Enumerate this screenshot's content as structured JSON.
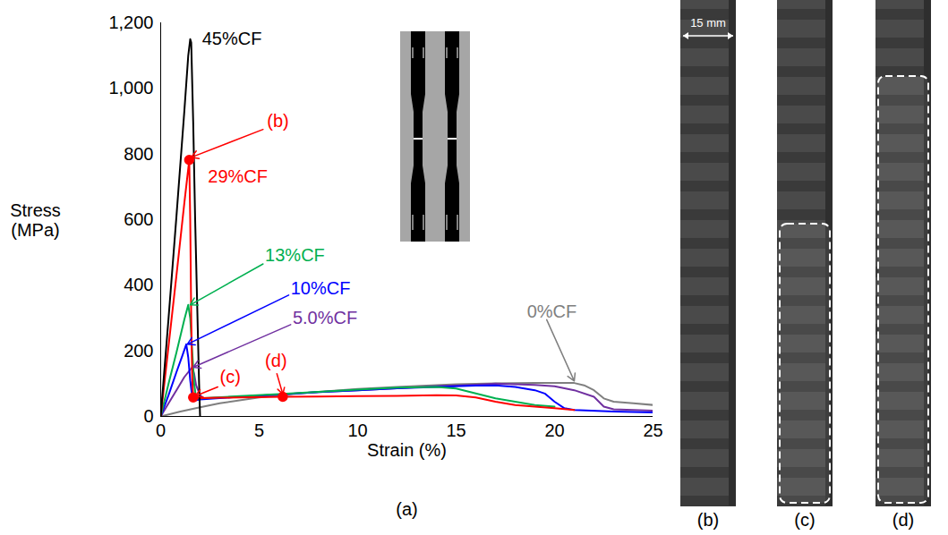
{
  "chart_data": {
    "type": "line",
    "x_label": "Strain (%)",
    "y_label": "Stress (MPa)",
    "panel_label": "(a)",
    "xlim": [
      0,
      25
    ],
    "ylim": [
      0,
      1200
    ],
    "xticks": [
      0,
      5,
      10,
      15,
      20,
      25
    ],
    "yticks": [
      0,
      200,
      400,
      600,
      800,
      1000,
      1200
    ],
    "series": [
      {
        "name": "45%CF",
        "color": "#000000",
        "x": [
          0,
          0.4,
          0.8,
          1.2,
          1.4,
          1.5,
          1.55,
          1.65,
          1.75,
          1.85,
          1.95,
          2.0
        ],
        "values": [
          0,
          300,
          610,
          930,
          1100,
          1150,
          1140,
          900,
          600,
          350,
          100,
          0
        ],
        "label": {
          "x": 2.1,
          "y": 1150
        }
      },
      {
        "name": "29%CF",
        "color": "#ff0000",
        "x": [
          0,
          0.4,
          0.8,
          1.2,
          1.45,
          1.5,
          1.55,
          1.6,
          1.65,
          2,
          3,
          4,
          6.2,
          8,
          10,
          12,
          14,
          15,
          16,
          17,
          18,
          19,
          20,
          21
        ],
        "values": [
          0,
          215,
          430,
          650,
          782,
          600,
          300,
          120,
          58,
          56,
          57,
          58,
          60,
          61,
          62,
          63,
          65,
          64,
          58,
          45,
          35,
          30,
          25,
          20
        ],
        "label": {
          "x": 2.4,
          "y": 730
        }
      },
      {
        "name": "13%CF",
        "color": "#00b050",
        "x": [
          0,
          0.4,
          0.8,
          1.2,
          1.4,
          1.5,
          1.6,
          1.7,
          1.8,
          2,
          4,
          6,
          8,
          10,
          12,
          14,
          15,
          16,
          17,
          18,
          19,
          20
        ],
        "values": [
          0,
          100,
          195,
          295,
          340,
          300,
          200,
          100,
          55,
          55,
          62,
          68,
          75,
          82,
          88,
          90,
          85,
          70,
          55,
          45,
          35,
          30
        ],
        "label": {
          "x": 5.3,
          "y": 490,
          "arrow": [
            [
              5.2,
              465
            ],
            [
              1.5,
              340
            ]
          ]
        }
      },
      {
        "name": "10%CF",
        "color": "#0000ff",
        "x": [
          0,
          0.4,
          0.8,
          1.1,
          1.3,
          1.4,
          1.5,
          1.6,
          1.8,
          2,
          4,
          6,
          8,
          10,
          12,
          14,
          16,
          17,
          18,
          19,
          19.5,
          20,
          20.5,
          21,
          23,
          25
        ],
        "values": [
          0,
          65,
          135,
          185,
          220,
          180,
          110,
          60,
          50,
          52,
          60,
          67,
          74,
          80,
          86,
          90,
          94,
          95,
          90,
          80,
          70,
          45,
          25,
          20,
          15,
          12
        ],
        "label": {
          "x": 6.6,
          "y": 390,
          "arrow": [
            [
              6.5,
              370
            ],
            [
              1.35,
              220
            ]
          ]
        }
      },
      {
        "name": "5.0%CF",
        "color": "#7030a0",
        "x": [
          0,
          0.4,
          0.8,
          1.2,
          1.6,
          1.7,
          1.8,
          2,
          2.2,
          4,
          6,
          8,
          10,
          12,
          14,
          16,
          17,
          18,
          19,
          20,
          21,
          22,
          22.5,
          23,
          25
        ],
        "values": [
          0,
          40,
          80,
          120,
          150,
          130,
          95,
          65,
          55,
          60,
          67,
          74,
          80,
          86,
          92,
          97,
          100,
          98,
          96,
          92,
          80,
          60,
          30,
          22,
          18
        ],
        "label": {
          "x": 6.7,
          "y": 300,
          "arrow": [
            [
              6.6,
              280
            ],
            [
              1.65,
              150
            ]
          ]
        }
      },
      {
        "name": "0%CF",
        "color": "#7f7f7f",
        "x": [
          0,
          1,
          2,
          3,
          5,
          7,
          10,
          12,
          15,
          17,
          19,
          21,
          21.5,
          22,
          22.5,
          23,
          24,
          25
        ],
        "values": [
          0,
          15,
          28,
          40,
          58,
          70,
          84,
          90,
          98,
          101,
          102,
          102,
          95,
          80,
          55,
          45,
          40,
          35
        ],
        "label": {
          "x": 18.6,
          "y": 320,
          "arrow": [
            [
              19.6,
              295
            ],
            [
              21,
              108
            ]
          ]
        }
      }
    ],
    "markers": [
      {
        "text": "(b)",
        "color": "#ff0000",
        "x": 1.45,
        "y": 782,
        "label": {
          "x": 5.4,
          "y": 900,
          "arrow": [
            [
              5.2,
              875
            ],
            [
              1.55,
              790
            ]
          ]
        }
      },
      {
        "text": "(c)",
        "color": "#ff0000",
        "x": 1.65,
        "y": 58,
        "label": {
          "x": 3.0,
          "y": 120,
          "arrow": [
            [
              2.9,
              90
            ],
            [
              1.75,
              62
            ]
          ]
        }
      },
      {
        "text": "(d)",
        "color": "#ff0000",
        "x": 6.2,
        "y": 60,
        "label": {
          "x": 5.3,
          "y": 170,
          "arrow": [
            [
              5.9,
              130
            ],
            [
              6.2,
              68
            ]
          ]
        }
      }
    ]
  },
  "images": [
    {
      "label": "(b)",
      "scale_bar": "15 mm",
      "dashed_region": false
    },
    {
      "label": "(c)",
      "dashed_region": true
    },
    {
      "label": "(d)",
      "dashed_region": true
    }
  ]
}
